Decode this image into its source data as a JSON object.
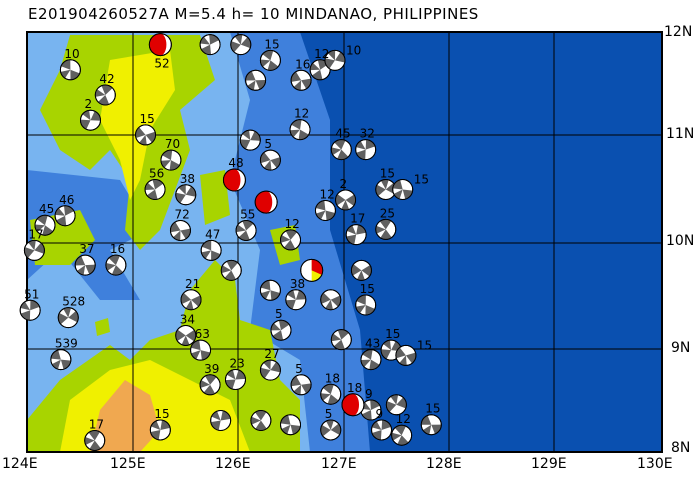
{
  "title": "E201904260527A  M=5.4  h= 10  MINDANAO, PHILIPPINES",
  "map": {
    "lon_range": [
      124,
      130
    ],
    "lat_range": [
      8,
      12
    ],
    "x_tick_labels": [
      "124E",
      "125E",
      "126E",
      "127E",
      "128E",
      "129E",
      "130E"
    ],
    "y_tick_labels": [
      "12N",
      "11N",
      "10N",
      "9N",
      "8N"
    ],
    "colors": {
      "deep_ocean": "#0a50b0",
      "mid_ocean": "#3f80dc",
      "shallow_ocean": "#78b4f0",
      "lowland": "#a8d400",
      "upland": "#f0f000",
      "highland": "#f0a850",
      "compression": "#606060",
      "target": "#e00000",
      "target_secondary": "#f0f000"
    }
  },
  "events": [
    {
      "lon": 125.26,
      "lat": 11.88,
      "depth": "52",
      "color": "red"
    },
    {
      "lon": 125.96,
      "lat": 10.59,
      "depth": "48",
      "color": "red"
    },
    {
      "lon": 126.26,
      "lat": 10.38,
      "depth": "",
      "color": "red"
    },
    {
      "lon": 126.69,
      "lat": 9.73,
      "depth": "",
      "color": "red-yellow"
    },
    {
      "lon": 127.08,
      "lat": 8.45,
      "depth": "18",
      "color": "red"
    },
    {
      "lon": 124.41,
      "lat": 11.64,
      "depth": "10",
      "color": "gray"
    },
    {
      "lon": 124.74,
      "lat": 11.4,
      "depth": "42",
      "color": "gray"
    },
    {
      "lon": 124.6,
      "lat": 11.16,
      "depth": "2",
      "color": "gray"
    },
    {
      "lon": 125.12,
      "lat": 11.02,
      "depth": "15",
      "color": "gray"
    },
    {
      "lon": 125.36,
      "lat": 10.78,
      "depth": "70",
      "color": "gray"
    },
    {
      "lon": 125.21,
      "lat": 10.5,
      "depth": "56",
      "color": "gray"
    },
    {
      "lon": 125.5,
      "lat": 10.45,
      "depth": "38",
      "color": "gray"
    },
    {
      "lon": 125.45,
      "lat": 10.11,
      "depth": "72",
      "color": "gray"
    },
    {
      "lon": 124.17,
      "lat": 10.16,
      "depth": "45",
      "color": "gray"
    },
    {
      "lon": 124.36,
      "lat": 10.25,
      "depth": "46",
      "color": "gray"
    },
    {
      "lon": 124.07,
      "lat": 9.92,
      "depth": "17",
      "color": "gray"
    },
    {
      "lon": 124.55,
      "lat": 9.78,
      "depth": "37",
      "color": "gray"
    },
    {
      "lon": 124.84,
      "lat": 9.78,
      "depth": "16",
      "color": "gray"
    },
    {
      "lon": 124.03,
      "lat": 9.35,
      "depth": "51",
      "color": "gray"
    },
    {
      "lon": 124.39,
      "lat": 9.28,
      "depth": "528",
      "color": "gray"
    },
    {
      "lon": 124.32,
      "lat": 8.88,
      "depth": "539",
      "color": "gray"
    },
    {
      "lon": 124.64,
      "lat": 8.11,
      "depth": "17",
      "color": "gray"
    },
    {
      "lon": 125.26,
      "lat": 8.21,
      "depth": "15",
      "color": "gray"
    },
    {
      "lon": 125.5,
      "lat": 9.11,
      "depth": "34",
      "color": "gray"
    },
    {
      "lon": 125.64,
      "lat": 8.97,
      "depth": "63",
      "color": "gray"
    },
    {
      "lon": 125.73,
      "lat": 8.64,
      "depth": "39",
      "color": "gray"
    },
    {
      "lon": 125.97,
      "lat": 8.69,
      "depth": "23",
      "color": "gray"
    },
    {
      "lon": 125.55,
      "lat": 9.45,
      "depth": "21",
      "color": "gray"
    },
    {
      "lon": 125.74,
      "lat": 9.92,
      "depth": "47",
      "color": "gray"
    },
    {
      "lon": 126.07,
      "lat": 10.11,
      "depth": "55",
      "color": "gray"
    },
    {
      "lon": 126.11,
      "lat": 10.97,
      "depth": "",
      "color": "gray"
    },
    {
      "lon": 126.3,
      "lat": 10.78,
      "depth": "5",
      "color": "gray"
    },
    {
      "lon": 126.58,
      "lat": 11.07,
      "depth": "12",
      "color": "gray"
    },
    {
      "lon": 126.77,
      "lat": 11.64,
      "depth": "12",
      "color": "gray"
    },
    {
      "lon": 126.91,
      "lat": 11.73,
      "depth": "10",
      "color": "gray"
    },
    {
      "lon": 126.59,
      "lat": 11.54,
      "depth": "16",
      "color": "gray"
    },
    {
      "lon": 126.3,
      "lat": 11.73,
      "depth": "15",
      "color": "gray"
    },
    {
      "lon": 125.73,
      "lat": 11.88,
      "depth": "",
      "color": "gray"
    },
    {
      "lon": 126.02,
      "lat": 11.88,
      "depth": "",
      "color": "gray"
    },
    {
      "lon": 126.16,
      "lat": 11.54,
      "depth": "",
      "color": "gray"
    },
    {
      "lon": 126.97,
      "lat": 10.88,
      "depth": "45",
      "color": "gray"
    },
    {
      "lon": 127.2,
      "lat": 10.88,
      "depth": "32",
      "color": "gray"
    },
    {
      "lon": 127.39,
      "lat": 10.5,
      "depth": "15",
      "color": "gray"
    },
    {
      "lon": 127.55,
      "lat": 10.5,
      "depth": "15",
      "color": "gray"
    },
    {
      "lon": 127.39,
      "lat": 10.12,
      "depth": "25",
      "color": "gray"
    },
    {
      "lon": 127.11,
      "lat": 10.07,
      "depth": "17",
      "color": "gray"
    },
    {
      "lon": 127.01,
      "lat": 10.4,
      "depth": "2",
      "color": "gray"
    },
    {
      "lon": 126.82,
      "lat": 10.3,
      "depth": "12",
      "color": "gray"
    },
    {
      "lon": 126.49,
      "lat": 10.02,
      "depth": "12",
      "color": "gray"
    },
    {
      "lon": 126.54,
      "lat": 9.45,
      "depth": "38",
      "color": "gray"
    },
    {
      "lon": 126.87,
      "lat": 9.45,
      "depth": "",
      "color": "gray"
    },
    {
      "lon": 127.2,
      "lat": 9.4,
      "depth": "15",
      "color": "gray"
    },
    {
      "lon": 126.97,
      "lat": 9.07,
      "depth": "",
      "color": "gray"
    },
    {
      "lon": 127.44,
      "lat": 8.97,
      "depth": "15",
      "color": "gray"
    },
    {
      "lon": 127.58,
      "lat": 8.92,
      "depth": "15",
      "color": "gray"
    },
    {
      "lon": 127.25,
      "lat": 8.88,
      "depth": "43",
      "color": "gray"
    },
    {
      "lon": 126.4,
      "lat": 9.16,
      "depth": "5",
      "color": "gray"
    },
    {
      "lon": 126.3,
      "lat": 8.78,
      "depth": "27",
      "color": "gray"
    },
    {
      "lon": 126.59,
      "lat": 8.64,
      "depth": "5",
      "color": "gray"
    },
    {
      "lon": 126.87,
      "lat": 8.55,
      "depth": "18",
      "color": "gray"
    },
    {
      "lon": 127.25,
      "lat": 8.4,
      "depth": "9",
      "color": "gray"
    },
    {
      "lon": 127.49,
      "lat": 8.45,
      "depth": "",
      "color": "gray"
    },
    {
      "lon": 127.82,
      "lat": 8.26,
      "depth": "15",
      "color": "gray"
    },
    {
      "lon": 127.54,
      "lat": 8.16,
      "depth": "12",
      "color": "gray"
    },
    {
      "lon": 127.35,
      "lat": 8.21,
      "depth": "9",
      "color": "gray"
    },
    {
      "lon": 126.87,
      "lat": 8.21,
      "depth": "5",
      "color": "gray"
    },
    {
      "lon": 126.49,
      "lat": 8.26,
      "depth": "",
      "color": "gray"
    },
    {
      "lon": 126.21,
      "lat": 8.3,
      "depth": "",
      "color": "gray"
    },
    {
      "lon": 125.83,
      "lat": 8.3,
      "depth": "",
      "color": "gray"
    },
    {
      "lon": 127.16,
      "lat": 9.73,
      "depth": "",
      "color": "gray"
    },
    {
      "lon": 126.3,
      "lat": 9.54,
      "depth": "",
      "color": "gray"
    },
    {
      "lon": 125.93,
      "lat": 9.73,
      "depth": "",
      "color": "gray"
    }
  ]
}
